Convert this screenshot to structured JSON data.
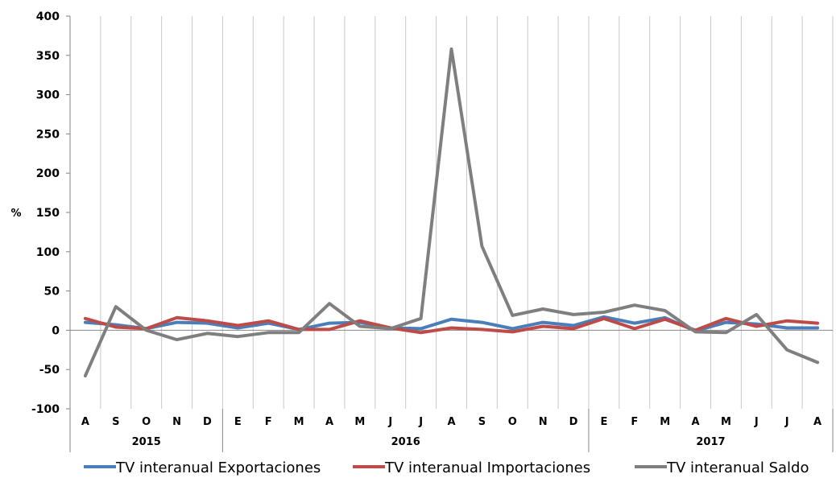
{
  "chart_data": {
    "type": "line",
    "ylabel": "%",
    "ylim": [
      -100,
      400
    ],
    "y_ticks": [
      "400",
      "350",
      "300",
      "250",
      "200",
      "150",
      "100",
      "50",
      "0",
      "-50",
      "-100"
    ],
    "y_tick_values": [
      400,
      350,
      300,
      250,
      200,
      150,
      100,
      50,
      0,
      -50,
      -100
    ],
    "categories": [
      "A",
      "S",
      "O",
      "N",
      "D",
      "E",
      "F",
      "M",
      "A",
      "M",
      "J",
      "J",
      "A",
      "S",
      "O",
      "N",
      "D",
      "E",
      "F",
      "M",
      "A",
      "M",
      "J",
      "J",
      "A"
    ],
    "years": [
      {
        "label": "2015",
        "start": 0,
        "end": 4
      },
      {
        "label": "2016",
        "start": 5,
        "end": 16
      },
      {
        "label": "2017",
        "start": 17,
        "end": 24
      }
    ],
    "grid": "vertical",
    "legend_position": "bottom",
    "series": [
      {
        "name": "TV interanual Exportaciones",
        "color": "#4a7ebb",
        "values": [
          10,
          7,
          2,
          10,
          9,
          3,
          9,
          1,
          9,
          10,
          3,
          2,
          14,
          10,
          2,
          10,
          6,
          17,
          9,
          16,
          -1,
          10,
          8,
          3,
          3
        ]
      },
      {
        "name": "TV interanual Importaciones",
        "color": "#be4b48",
        "values": [
          15,
          4,
          2,
          16,
          12,
          6,
          12,
          1,
          1,
          12,
          3,
          -3,
          3,
          1,
          -2,
          5,
          2,
          15,
          2,
          14,
          0,
          15,
          5,
          12,
          9
        ]
      },
      {
        "name": "TV interanual Saldo",
        "color": "#7f7f7f",
        "values": [
          -58,
          30,
          0,
          -12,
          -4,
          -8,
          -3,
          -3,
          34,
          5,
          2,
          15,
          358,
          107,
          19,
          27,
          20,
          23,
          32,
          25,
          -2,
          -3,
          20,
          -25,
          -41
        ]
      }
    ]
  }
}
